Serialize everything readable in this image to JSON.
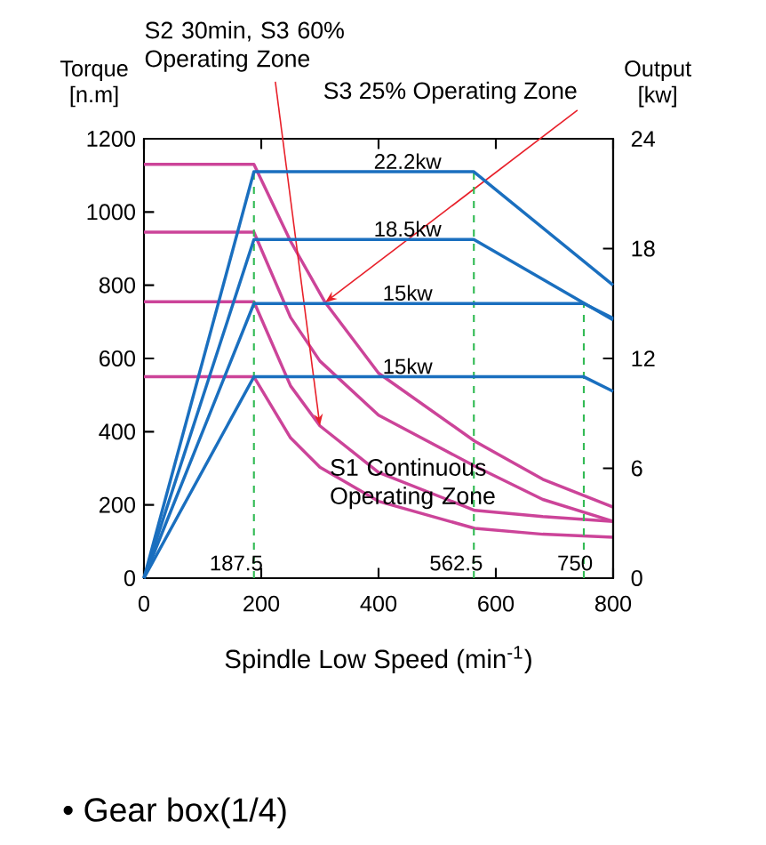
{
  "chart_data": {
    "type": "line",
    "xlabel": "Spindle Low Speed (min$^{-1}$)",
    "ylabel": "Torque [n.m]",
    "y2label": "Output [kw]",
    "xlim": [
      0,
      800
    ],
    "xticks": [
      0,
      200,
      400,
      600,
      800
    ],
    "ylim": [
      0,
      1200
    ],
    "yticks": [
      0,
      200,
      400,
      600,
      800,
      1000,
      1200
    ],
    "y2lim": [
      0,
      24
    ],
    "y2ticks": [
      0,
      6,
      12,
      18,
      24
    ],
    "marker": "none",
    "line_style": "solid",
    "series": [
      {
        "color": "#cc4499",
        "x": [
          0,
          187.5,
          250,
          309,
          400,
          564,
          680,
          800
        ],
        "values": [
          1130,
          1130,
          920,
          753,
          560,
          374,
          270,
          194
        ]
      },
      {
        "color": "#cc4499",
        "x": [
          0,
          187.5,
          250,
          300,
          400,
          564,
          680,
          800
        ],
        "values": [
          945,
          945,
          712,
          593,
          445,
          306,
          215,
          155
        ]
      },
      {
        "color": "#cc4499",
        "x": [
          0,
          187.5,
          250,
          300,
          400,
          564,
          680,
          800
        ],
        "values": [
          755,
          755,
          525,
          416,
          289,
          185,
          168,
          155
        ]
      },
      {
        "color": "#cc4499",
        "x": [
          0,
          187.5,
          250,
          300,
          400,
          564,
          680,
          800
        ],
        "values": [
          550,
          550,
          383,
          303,
          210,
          136,
          120,
          112
        ]
      },
      {
        "name": "22.2kw",
        "color": "#1a6fbf",
        "axis": "y2",
        "x": [
          0,
          187.5,
          562.5,
          800
        ],
        "values": [
          0,
          22.2,
          22.2,
          16.0
        ]
      },
      {
        "name": "18.5kw",
        "color": "#1a6fbf",
        "axis": "y2",
        "x": [
          0,
          187.5,
          562.5,
          800
        ],
        "values": [
          0,
          18.5,
          18.5,
          14.1
        ]
      },
      {
        "name": "15kw",
        "color": "#1a6fbf",
        "axis": "y2",
        "x": [
          0,
          187.5,
          750,
          800
        ],
        "values": [
          0,
          15,
          15,
          14.2
        ]
      },
      {
        "name": "15kw",
        "color": "#1a6fbf",
        "axis": "y2",
        "x": [
          0,
          187.5,
          750,
          800
        ],
        "values": [
          0,
          11,
          11,
          10.2
        ]
      }
    ],
    "ref_lines": [
      {
        "axis": "x",
        "value": 187.5,
        "label": "187.5",
        "color": "#33bb55",
        "line_style": "dashed"
      },
      {
        "axis": "x",
        "value": 562.5,
        "label": "562.5",
        "color": "#33bb55",
        "line_style": "dashed"
      },
      {
        "axis": "x",
        "value": 750,
        "label": "750",
        "color": "#33bb55",
        "line_style": "dashed"
      }
    ],
    "annotations": [
      {
        "text": "S2 30min, S3 60% Operating Zone",
        "x": 300,
        "y": 416
      },
      {
        "text": "S3  25% Operating Zone",
        "x": 309,
        "y": 753
      },
      "S1 Continuous Operating Zone",
      "• Gear box(1/4)"
    ]
  }
}
